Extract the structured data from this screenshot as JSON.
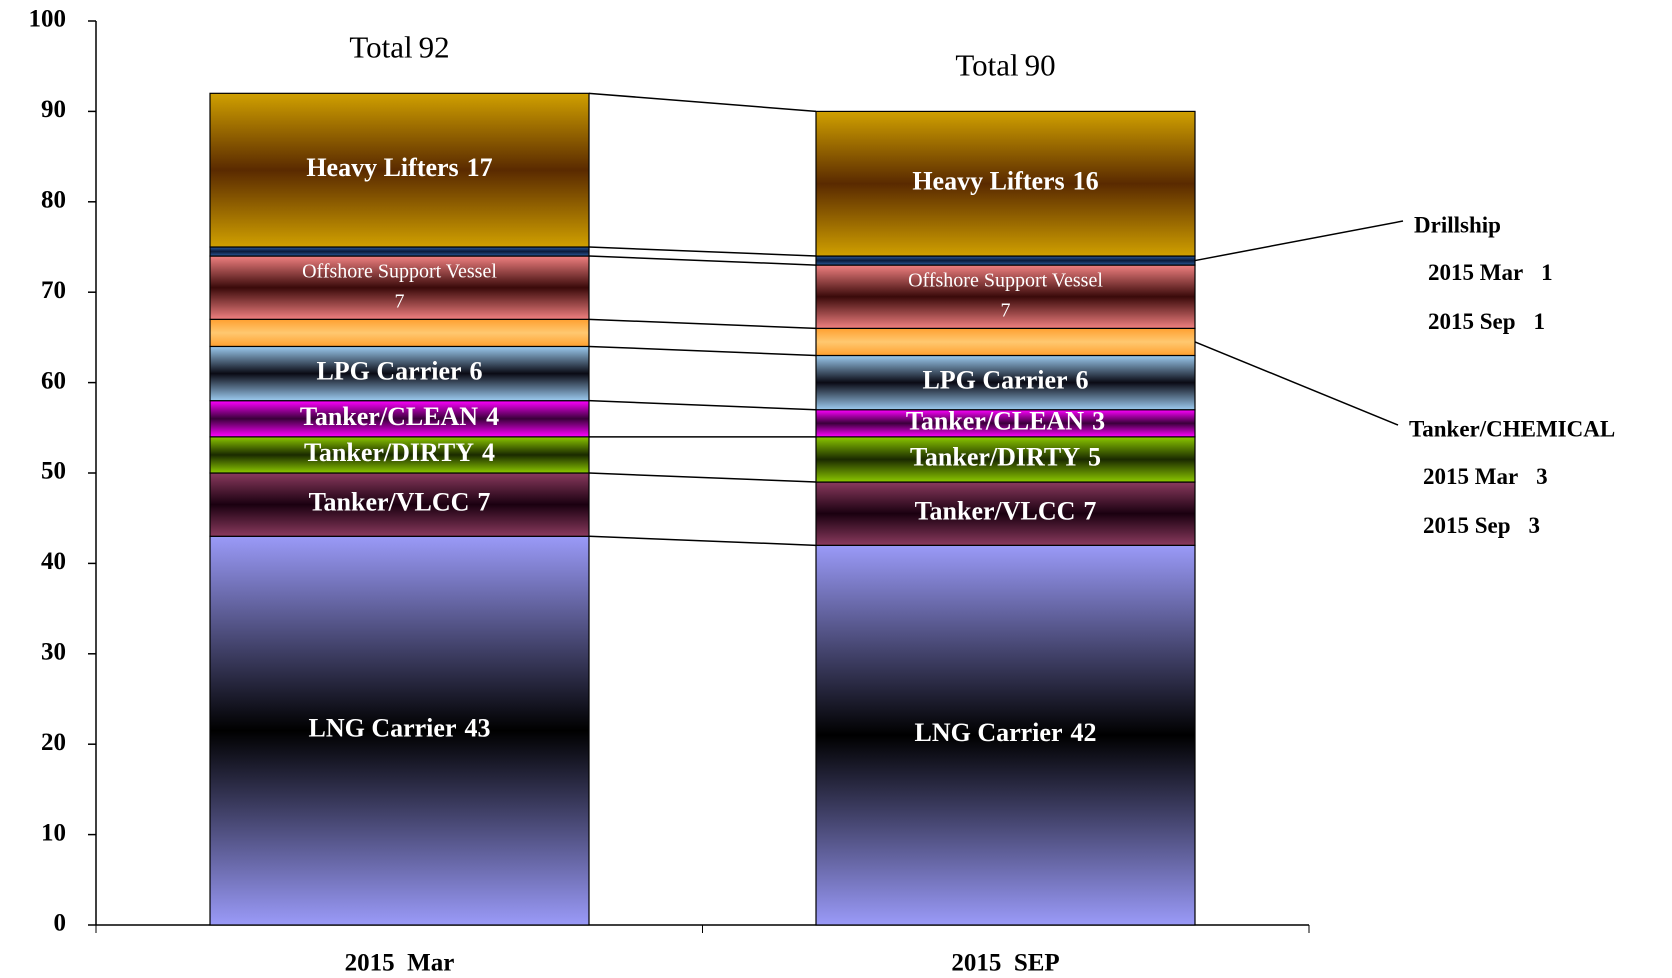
{
  "chart_data": {
    "type": "stacked_bar",
    "categories": [
      "2015  Mar",
      "2015  SEP"
    ],
    "total_label": "Total",
    "totals": [
      92,
      90
    ],
    "ylim": [
      0,
      100
    ],
    "yticks": [
      0,
      10,
      20,
      30,
      40,
      50,
      60,
      70,
      80,
      90,
      100
    ],
    "callout_periods": [
      "2015 Mar",
      "2015 Sep"
    ],
    "series": [
      {
        "name": "LNG Carrier",
        "color": "#9a9af8",
        "dark": "#000000",
        "label_position": "inside",
        "values": [
          43,
          42
        ]
      },
      {
        "name": "Tanker/VLCC",
        "color": "#8a3a5e",
        "dark": "#1a0010",
        "label_position": "inside",
        "values": [
          7,
          7
        ]
      },
      {
        "name": "Tanker/DIRTY",
        "color": "#8cc800",
        "dark": "#1a2a00",
        "label_position": "inside",
        "values": [
          4,
          5
        ]
      },
      {
        "name": "Tanker/CLEAN",
        "color": "#ff00ff",
        "dark": "#3a003a",
        "label_position": "inside",
        "values": [
          4,
          3
        ]
      },
      {
        "name": "LPG Carrier",
        "color": "#9ccbf0",
        "dark": "#0a0a14",
        "label_position": "inside",
        "values": [
          6,
          6
        ]
      },
      {
        "name": "Tanker/CHEMICAL",
        "color": "#ffa030",
        "dark": "#ffc870",
        "label_position": "callout",
        "values": [
          3,
          3
        ]
      },
      {
        "name": "Offshore Support Vessel",
        "color": "#f08080",
        "dark": "#3a0a0a",
        "label_position": "inside-two-line",
        "values": [
          7,
          7
        ]
      },
      {
        "name": "Drillship",
        "color": "#2a5a9a",
        "dark": "#0a1a3a",
        "label_position": "callout",
        "values": [
          1,
          1
        ]
      },
      {
        "name": "Heavy Lifters",
        "color": "#d0a000",
        "dark": "#5a2a00",
        "label_position": "inside",
        "values": [
          17,
          16
        ]
      }
    ]
  }
}
